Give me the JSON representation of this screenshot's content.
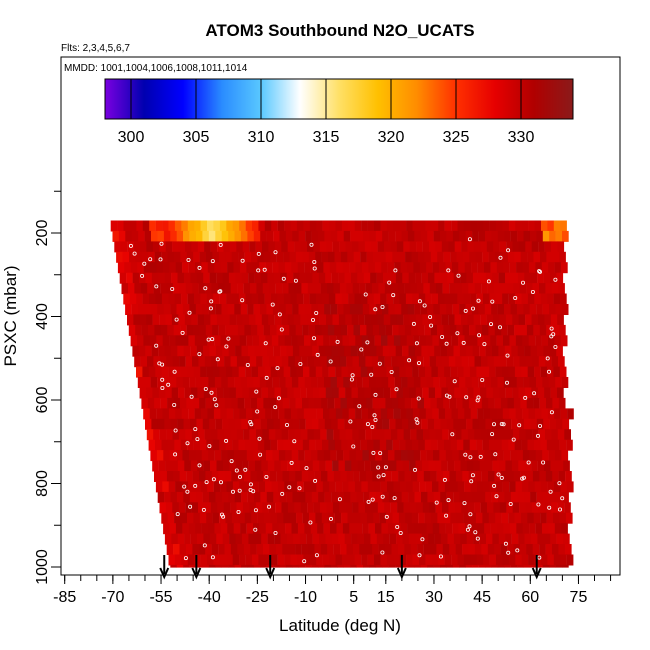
{
  "chart_data": {
    "type": "heatmap",
    "title": "ATOM3 Southbound N2O_UCATS",
    "annotations": {
      "flights": "Flts: 2,3,4,5,6,7",
      "mmdd": "MMDD: 1001,1004,1006,1008,1011,1014"
    },
    "xlabel": "Latitude (deg N)",
    "ylabel": "PSXC (mbar)",
    "xlim": [
      -85,
      85
    ],
    "ylim": [
      1000,
      0
    ],
    "x_ticks": [
      -85,
      -70,
      -55,
      -40,
      -25,
      -10,
      5,
      15,
      30,
      45,
      60,
      75
    ],
    "y_ticks": [
      200,
      400,
      600,
      800,
      1000
    ],
    "colorbar": {
      "range": [
        298,
        334
      ],
      "ticks": [
        300,
        305,
        310,
        315,
        320,
        325,
        330
      ],
      "colors": [
        "#7a00e0",
        "#0000b0",
        "#0000ff",
        "#2a8cff",
        "#59c8ff",
        "#ffffff",
        "#ffe066",
        "#ffc000",
        "#ff8c00",
        "#ff3000",
        "#e60000",
        "#b00000",
        "#8b1a1a"
      ]
    },
    "profile_latitudes": [
      -54,
      -44,
      -21,
      20,
      62
    ],
    "field_summary": {
      "background_N2O_ppb": 330,
      "upper_tropospheric_low_ppb": 316,
      "low_region_latitudes": [
        -55,
        -25
      ],
      "pressure_top_mbar": 170
    }
  },
  "colors": {
    "axis": "#000000",
    "markers": "#ffffff"
  }
}
